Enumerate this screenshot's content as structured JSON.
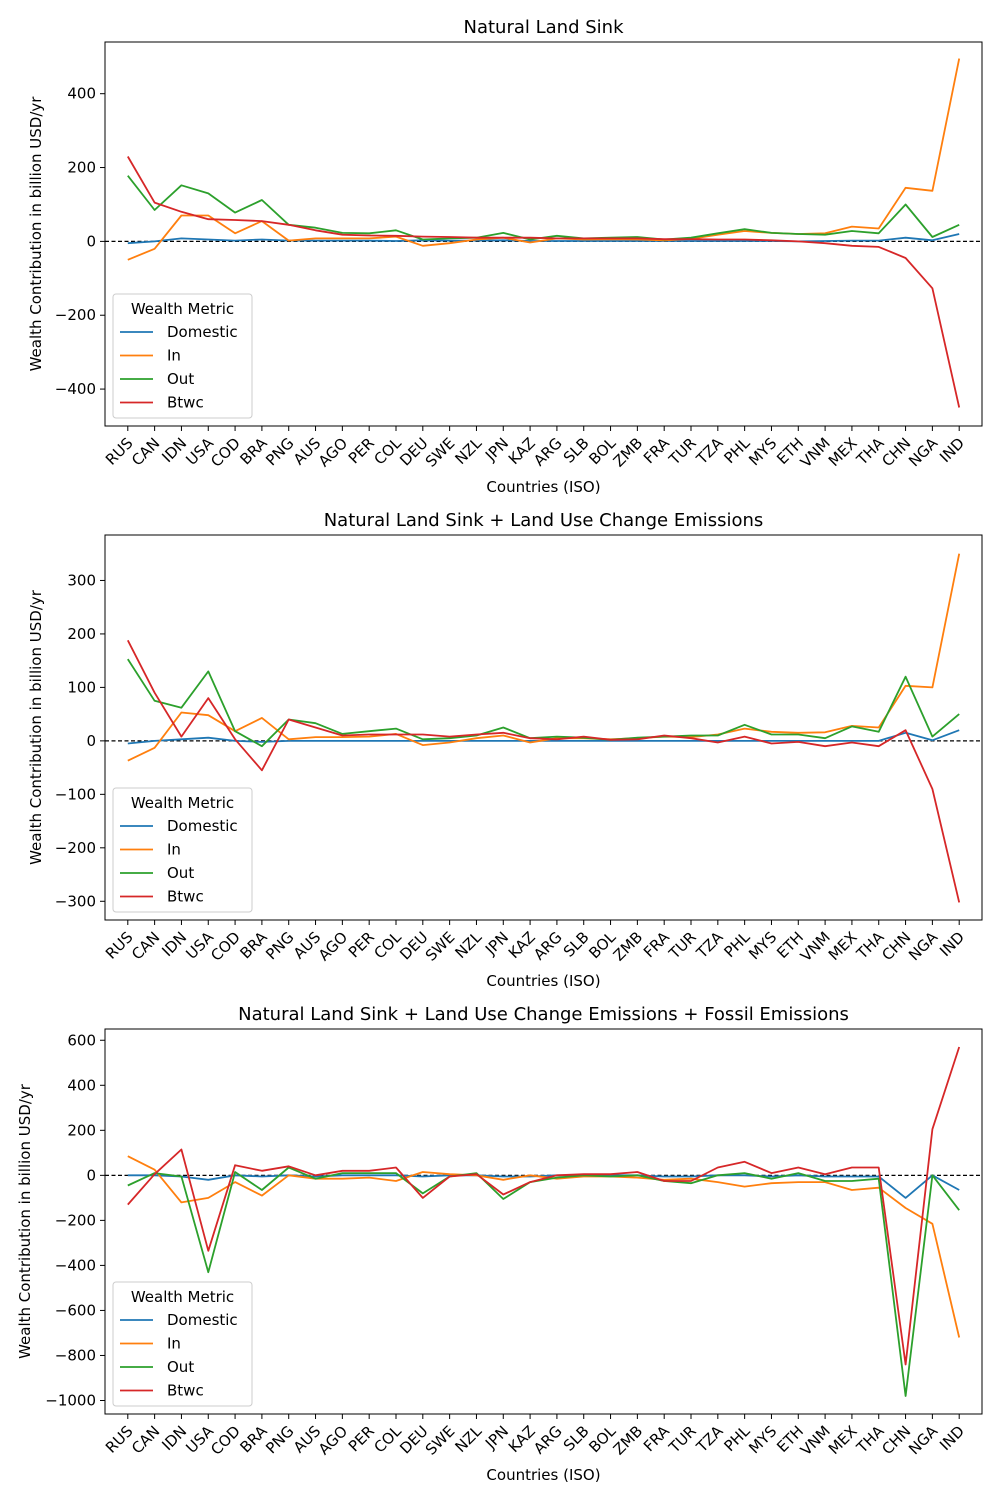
{
  "chart_data": [
    {
      "type": "line",
      "title": "Natural Land Sink",
      "xlabel": "Countries (ISO)",
      "ylabel": "Wealth Contribution in billion USD/yr",
      "ylim": [
        -500,
        540
      ],
      "yticks": [
        -400,
        -200,
        0,
        200,
        400
      ],
      "legend": {
        "title": "Wealth Metric",
        "placement": "lower-left"
      },
      "zero_line": "dashed",
      "grid": false,
      "categories": [
        "RUS",
        "CAN",
        "IDN",
        "USA",
        "COD",
        "BRA",
        "PNG",
        "AUS",
        "AGO",
        "PER",
        "COL",
        "DEU",
        "SWE",
        "NZL",
        "JPN",
        "KAZ",
        "ARG",
        "SLB",
        "BOL",
        "ZMB",
        "FRA",
        "TUR",
        "TZA",
        "PHL",
        "MYS",
        "ETH",
        "VNM",
        "MEX",
        "THA",
        "CHN",
        "NGA",
        "IND"
      ],
      "series": [
        {
          "name": "Domestic",
          "color": "#1f77b4",
          "values": [
            -5,
            0,
            8,
            5,
            2,
            5,
            2,
            2,
            2,
            2,
            1,
            3,
            2,
            2,
            3,
            1,
            1,
            1,
            1,
            1,
            1,
            1,
            1,
            1,
            1,
            0,
            1,
            2,
            2,
            10,
            3,
            20
          ]
        },
        {
          "name": "In",
          "color": "#ff7f0e",
          "values": [
            -50,
            -20,
            70,
            70,
            22,
            55,
            2,
            8,
            8,
            8,
            13,
            -12,
            -5,
            5,
            10,
            -3,
            8,
            5,
            6,
            5,
            3,
            7,
            18,
            28,
            23,
            20,
            22,
            40,
            35,
            145,
            137,
            495
          ]
        },
        {
          "name": "Out",
          "color": "#2ca02c",
          "values": [
            178,
            85,
            152,
            130,
            78,
            112,
            45,
            37,
            23,
            22,
            30,
            5,
            8,
            10,
            23,
            5,
            15,
            8,
            10,
            12,
            5,
            10,
            22,
            33,
            23,
            20,
            18,
            28,
            22,
            100,
            12,
            45
          ]
        },
        {
          "name": "Btwc",
          "color": "#d62728",
          "values": [
            230,
            105,
            80,
            60,
            58,
            55,
            45,
            30,
            18,
            16,
            15,
            13,
            12,
            10,
            10,
            10,
            8,
            8,
            8,
            8,
            6,
            6,
            5,
            5,
            3,
            0,
            -5,
            -12,
            -15,
            -45,
            -127,
            -450
          ]
        }
      ]
    },
    {
      "type": "line",
      "title": "Natural Land Sink + Land Use Change Emissions",
      "xlabel": "Countries (ISO)",
      "ylabel": "Wealth Contribution in billion USD/yr",
      "ylim": [
        -335,
        385
      ],
      "yticks": [
        -300,
        -200,
        -100,
        0,
        100,
        200,
        300
      ],
      "legend": {
        "title": "Wealth Metric",
        "placement": "lower-left"
      },
      "zero_line": "dashed",
      "grid": false,
      "categories": [
        "RUS",
        "CAN",
        "IDN",
        "USA",
        "COD",
        "BRA",
        "PNG",
        "AUS",
        "AGO",
        "PER",
        "COL",
        "DEU",
        "SWE",
        "NZL",
        "JPN",
        "KAZ",
        "ARG",
        "SLB",
        "BOL",
        "ZMB",
        "FRA",
        "TUR",
        "TZA",
        "PHL",
        "MYS",
        "ETH",
        "VNM",
        "MEX",
        "THA",
        "CHN",
        "NGA",
        "IND"
      ],
      "series": [
        {
          "name": "Domestic",
          "color": "#1f77b4",
          "values": [
            -5,
            0,
            3,
            6,
            0,
            -2,
            0,
            0,
            0,
            0,
            0,
            0,
            0,
            0,
            0,
            0,
            0,
            0,
            0,
            0,
            0,
            0,
            0,
            0,
            0,
            0,
            0,
            0,
            0,
            15,
            1,
            20
          ]
        },
        {
          "name": "In",
          "color": "#ff7f0e",
          "values": [
            -37,
            -13,
            53,
            48,
            18,
            43,
            3,
            7,
            7,
            8,
            13,
            -8,
            -3,
            5,
            10,
            -3,
            5,
            5,
            3,
            5,
            8,
            7,
            12,
            23,
            17,
            15,
            16,
            28,
            25,
            103,
            100,
            350
          ]
        },
        {
          "name": "Out",
          "color": "#2ca02c",
          "values": [
            153,
            75,
            62,
            130,
            18,
            -10,
            40,
            33,
            13,
            18,
            23,
            3,
            5,
            10,
            25,
            5,
            8,
            6,
            2,
            6,
            8,
            10,
            10,
            30,
            12,
            12,
            5,
            27,
            17,
            120,
            8,
            50
          ]
        },
        {
          "name": "Btwc",
          "color": "#d62728",
          "values": [
            188,
            90,
            8,
            80,
            3,
            -55,
            40,
            25,
            10,
            12,
            12,
            12,
            8,
            12,
            15,
            5,
            3,
            8,
            2,
            3,
            10,
            5,
            -3,
            8,
            -5,
            -2,
            -10,
            -3,
            -10,
            20,
            -90,
            -302
          ]
        }
      ]
    },
    {
      "type": "line",
      "title": "Natural Land Sink + Land Use Change Emissions + Fossil Emissions",
      "xlabel": "Countries (ISO)",
      "ylabel": "Wealth Contribution in billion USD/yr",
      "ylim": [
        -1060,
        650
      ],
      "yticks": [
        -1000,
        -800,
        -600,
        -400,
        -200,
        0,
        200,
        400,
        600
      ],
      "legend": {
        "title": "Wealth Metric",
        "placement": "lower-left"
      },
      "zero_line": "dashed",
      "grid": false,
      "categories": [
        "RUS",
        "CAN",
        "IDN",
        "USA",
        "COD",
        "BRA",
        "PNG",
        "AUS",
        "AGO",
        "PER",
        "COL",
        "DEU",
        "SWE",
        "NZL",
        "JPN",
        "KAZ",
        "ARG",
        "SLB",
        "BOL",
        "ZMB",
        "FRA",
        "TUR",
        "TZA",
        "PHL",
        "MYS",
        "ETH",
        "VNM",
        "MEX",
        "THA",
        "CHN",
        "NGA",
        "IND"
      ],
      "series": [
        {
          "name": "Domestic",
          "color": "#1f77b4",
          "values": [
            0,
            0,
            -5,
            -20,
            0,
            -5,
            0,
            -5,
            0,
            0,
            0,
            -5,
            0,
            0,
            -5,
            -5,
            0,
            0,
            0,
            0,
            -5,
            -5,
            0,
            0,
            -5,
            0,
            -5,
            -5,
            -5,
            -100,
            0,
            -65
          ]
        },
        {
          "name": "In",
          "color": "#ff7f0e",
          "values": [
            85,
            25,
            -120,
            -100,
            -30,
            -90,
            0,
            -15,
            -15,
            -10,
            -25,
            15,
            5,
            0,
            -20,
            0,
            -15,
            -5,
            -5,
            -10,
            -20,
            -15,
            -30,
            -50,
            -35,
            -30,
            -30,
            -65,
            -55,
            -145,
            -215,
            -720
          ]
        },
        {
          "name": "Out",
          "color": "#2ca02c",
          "values": [
            -45,
            10,
            -5,
            -430,
            15,
            -65,
            35,
            -15,
            10,
            10,
            10,
            -80,
            -5,
            10,
            -105,
            -30,
            -10,
            0,
            -5,
            0,
            -25,
            -35,
            0,
            10,
            -15,
            10,
            -25,
            -25,
            -15,
            -980,
            0,
            -155
          ]
        },
        {
          "name": "Btwc",
          "color": "#d62728",
          "values": [
            -130,
            5,
            115,
            -335,
            45,
            20,
            40,
            0,
            20,
            20,
            35,
            -100,
            -5,
            5,
            -85,
            -30,
            0,
            5,
            5,
            15,
            -25,
            -25,
            35,
            60,
            10,
            35,
            5,
            35,
            35,
            -840,
            205,
            570
          ]
        }
      ]
    }
  ]
}
